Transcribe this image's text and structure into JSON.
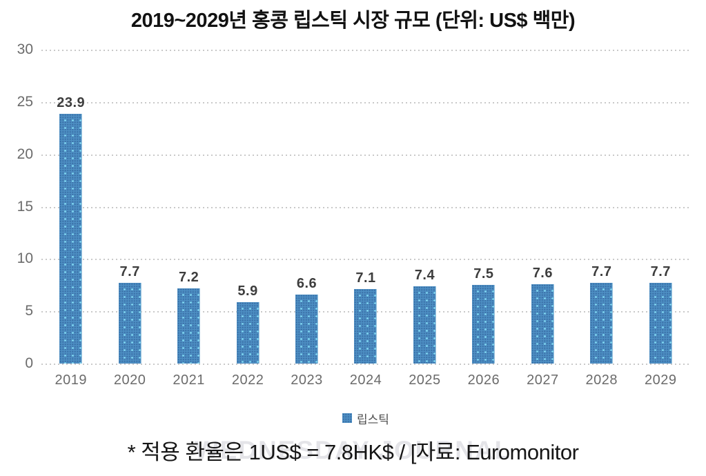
{
  "title": "2019~2029년 홍콩 립스틱 시장 규모 (단위: US$ 백만)",
  "watermark": "WEDNESDAY JOURNAL",
  "footnote": "* 적용 환율은 1US$ = 7.8HK$ / [자료: Euromonitor",
  "legend": {
    "label": "립스틱",
    "swatch_color": "#4d8fc3"
  },
  "colors": {
    "bar": "#4d8fc3",
    "bar_dot_light": "#87e1f8",
    "bar_dot_dark": "#26508c",
    "gridline": "#c9c9c9",
    "axis_text": "#6b6b6b",
    "value_text": "#3d3d3d"
  },
  "chart_data": {
    "type": "bar",
    "title": "2019~2029년 홍콩 립스틱 시장 규모 (단위: US$ 백만)",
    "categories": [
      "2019",
      "2020",
      "2021",
      "2022",
      "2023",
      "2024",
      "2025",
      "2026",
      "2027",
      "2028",
      "2029"
    ],
    "series": [
      {
        "name": "립스틱",
        "values": [
          23.9,
          7.7,
          7.2,
          5.9,
          6.6,
          7.1,
          7.4,
          7.5,
          7.6,
          7.7,
          7.7
        ]
      }
    ],
    "xlabel": "",
    "ylabel": "",
    "ylim": [
      0,
      30
    ],
    "yticks": [
      0,
      5,
      10,
      15,
      20,
      25,
      30
    ],
    "grid": true,
    "grid_style": "dotted",
    "legend_position": "bottom",
    "data_labels": true,
    "unit": "US$ 백만"
  }
}
